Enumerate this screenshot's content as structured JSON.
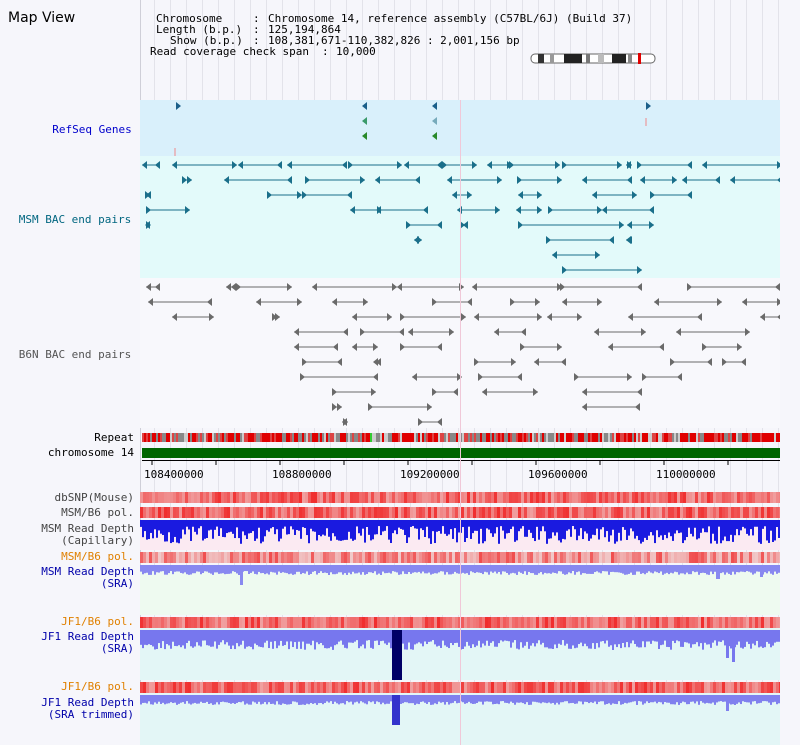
{
  "page": {
    "title": "Map View"
  },
  "info": {
    "chromosome_key": "Chromosome",
    "chromosome_value": "Chromosome 14, reference assembly (C57BL/6J) (Build 37)",
    "length_key": "Length (b.p.)",
    "length_value": "125,194,864",
    "show_key": "Show (b.p.)",
    "show_value": "108,381,671-110,382,826 : 2,001,156 bp",
    "span_key": "Read coverage check span",
    "span_value": "10,000"
  },
  "tracks": {
    "refseq": "RefSeq Genes",
    "msm_bac": "MSM BAC end pairs",
    "b6n_bac": "B6N BAC end pairs",
    "repeat": "Repeat",
    "chromosome": "chromosome 14",
    "dbsnp": "dbSNP(Mouse)",
    "msm_b6_pol_1": "MSM/B6 pol.",
    "msm_depth_cap_1": "MSM Read Depth",
    "msm_depth_cap_2": "(Capillary)",
    "msm_b6_pol_2": "MSM/B6 pol.",
    "msm_depth_sra_1": "MSM Read Depth",
    "msm_depth_sra_2": "(SRA)",
    "jf1_b6_pol_1": "JF1/B6 pol.",
    "jf1_depth_sra_1": "JF1 Read Depth",
    "jf1_depth_sra_2": "(SRA)",
    "jf1_b6_pol_2": "JF1/B6 pol.",
    "jf1_depth_trim_1": "JF1 Read Depth",
    "jf1_depth_trim_2": "(SRA trimmed)"
  },
  "axis": {
    "ticks": [
      "108400000",
      "108800000",
      "109200000",
      "109600000",
      "110000000"
    ]
  },
  "colors": {
    "refseq_label": "#0000cc",
    "msm_label": "#006680",
    "b6n_label": "#555555",
    "orange_label": "#e08000",
    "blue_label": "#0000aa",
    "refseq_bg": "#d9f0fb",
    "msm_bg": "#e3fafa",
    "chrom_green": "#006600"
  }
}
